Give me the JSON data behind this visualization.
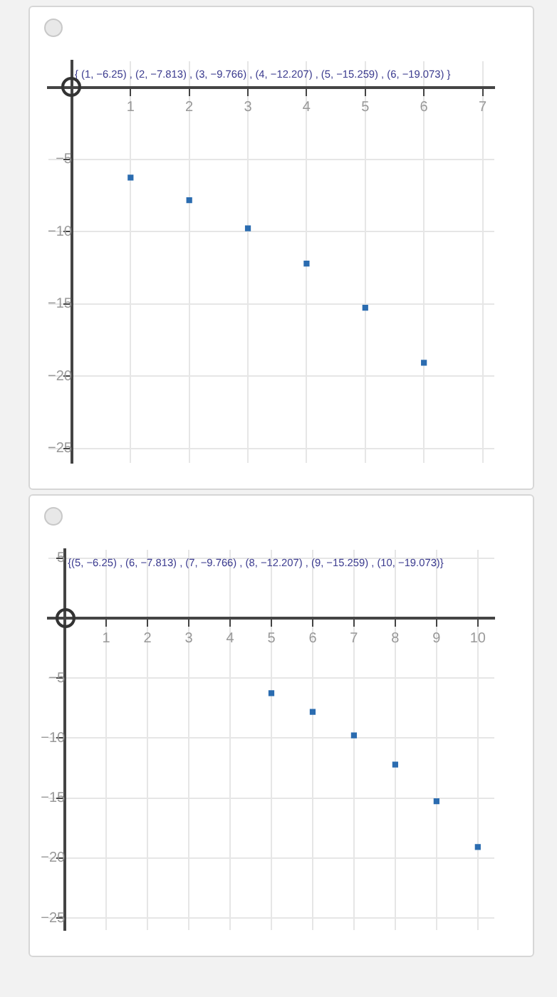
{
  "chart_data": [
    {
      "type": "scatter",
      "x": [
        1,
        2,
        3,
        4,
        5,
        6
      ],
      "values": [
        -6.25,
        -7.813,
        -9.766,
        -12.207,
        -15.259,
        -19.073
      ],
      "color": "#2b6cb0",
      "marker": "square",
      "xlim": [
        -0.4,
        7.2
      ],
      "ylim": [
        -26,
        1.8
      ],
      "xticks": [
        {
          "value": 0,
          "label": null
        },
        1,
        2,
        3,
        4,
        5,
        6,
        7
      ],
      "yticks": [
        -25,
        -20,
        -15,
        -10,
        -5,
        {
          "value": 0,
          "label": null
        }
      ],
      "grid": true,
      "annotations": [
        "{ (1, −6.25) , (2, −7.813) , (3, −9.766) , (4, −12.207) , (5, −15.259) , (6, −19.073) }"
      ]
    },
    {
      "type": "scatter",
      "x": [
        5,
        6,
        7,
        8,
        9,
        10
      ],
      "values": [
        -6.25,
        -7.813,
        -9.766,
        -12.207,
        -15.259,
        -19.073
      ],
      "color": "#2b6cb0",
      "marker": "square",
      "xlim": [
        -0.4,
        10.4
      ],
      "ylim": [
        -26,
        5.7
      ],
      "xticks": [
        {
          "value": 0,
          "label": null
        },
        1,
        2,
        3,
        4,
        5,
        6,
        7,
        8,
        9,
        10
      ],
      "yticks": [
        -25,
        -20,
        -15,
        -10,
        -5,
        {
          "value": 0,
          "label": null
        },
        5
      ],
      "grid": true,
      "annotations": [
        "{(5, −6.25) , (6, −7.813) , (7, −9.766) , (8, −12.207) , (9, −15.259) , (10, −19.073)}"
      ]
    }
  ]
}
